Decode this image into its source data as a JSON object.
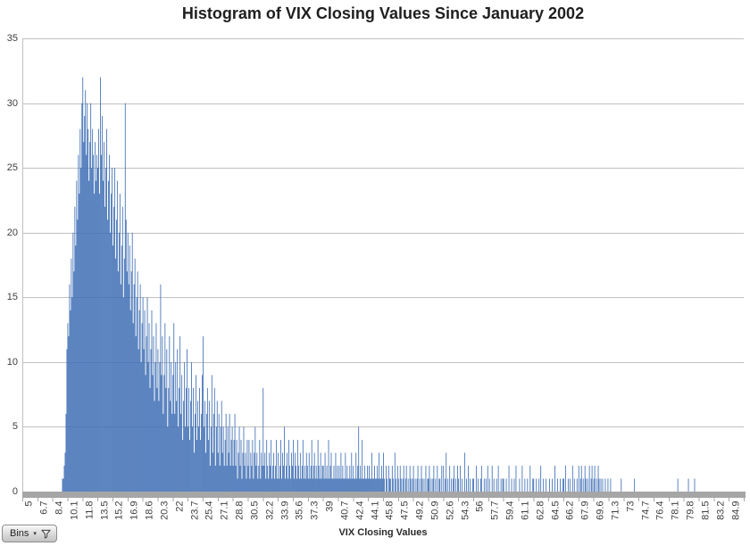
{
  "title": "Histogram of VIX Closing Values Since January 2002",
  "x_axis_title": "VIX Closing Values",
  "field_button": {
    "label": "Bins",
    "dropdown_icon": "▾",
    "filter_icon": "funnel"
  },
  "colors": {
    "bar": "#3f6fb5",
    "gridline": "#c0c0c0",
    "axis_band": "#a6a6a6",
    "text": "#3f3f3f"
  },
  "chart_data": {
    "type": "bar",
    "subtype": "histogram",
    "title": "Histogram of VIX Closing Values Since January 2002",
    "xlabel": "VIX Closing Values",
    "ylabel": "",
    "ylim": [
      0,
      35
    ],
    "y_ticks": [
      0,
      5,
      10,
      15,
      20,
      25,
      30,
      35
    ],
    "grid": true,
    "legend": false,
    "bin_start": 5.0,
    "bin_width": 0.1,
    "bins_per_tick": 17,
    "x_tick_labels": [
      "5",
      "6.7",
      "8.4",
      "10.1",
      "11.8",
      "13.5",
      "15.2",
      "16.9",
      "18.6",
      "20.3",
      "22",
      "23.7",
      "25.4",
      "27.1",
      "28.8",
      "30.5",
      "32.2",
      "33.9",
      "35.6",
      "37.3",
      "39",
      "40.7",
      "42.4",
      "44.1",
      "45.8",
      "47.5",
      "49.2",
      "50.9",
      "52.6",
      "54.3",
      "56",
      "57.7",
      "59.4",
      "61.1",
      "62.8",
      "64.5",
      "66.2",
      "67.9",
      "69.6",
      "71.3",
      "73",
      "74.7",
      "76.4",
      "78.1",
      "79.8",
      "81.5",
      "83.2",
      "84.9"
    ],
    "values": [
      0,
      0,
      0,
      0,
      0,
      0,
      0,
      0,
      0,
      0,
      0,
      0,
      0,
      0,
      0,
      0,
      0,
      0,
      0,
      0,
      0,
      0,
      0,
      0,
      0,
      0,
      0,
      0,
      0,
      0,
      0,
      0,
      0,
      0,
      0,
      0,
      0,
      0,
      0,
      0,
      0,
      0,
      0,
      0,
      0,
      1,
      1,
      2,
      3,
      6,
      11,
      13,
      12,
      16,
      14,
      18,
      15,
      20,
      17,
      22,
      19,
      24,
      21,
      26,
      23,
      28,
      25,
      30,
      32,
      27,
      29,
      31,
      26,
      30,
      28,
      24,
      27,
      30,
      25,
      28,
      26,
      23,
      27,
      24,
      26,
      25,
      28,
      23,
      32,
      26,
      29,
      24,
      27,
      22,
      25,
      28,
      21,
      24,
      26,
      20,
      23,
      25,
      19,
      22,
      25,
      18,
      21,
      24,
      17,
      20,
      23,
      16,
      19,
      22,
      15,
      18,
      30,
      21,
      17,
      20,
      16,
      19,
      14,
      17,
      20,
      13,
      16,
      18,
      12,
      15,
      17,
      11,
      14,
      16,
      10,
      13,
      15,
      11,
      14,
      9,
      12,
      15,
      10,
      13,
      8,
      11,
      14,
      9,
      12,
      7,
      10,
      13,
      8,
      11,
      7,
      10,
      16,
      9,
      12,
      6,
      9,
      13,
      8,
      11,
      5,
      8,
      12,
      7,
      10,
      6,
      9,
      13,
      6,
      10,
      7,
      11,
      5,
      8,
      12,
      6,
      9,
      4,
      7,
      10,
      5,
      8,
      11,
      5,
      8,
      4,
      7,
      10,
      5,
      8,
      3,
      6,
      9,
      4,
      7,
      5,
      8,
      4,
      6,
      9,
      12,
      5,
      7,
      3,
      6,
      8,
      4,
      7,
      2,
      5,
      9,
      3,
      6,
      8,
      2,
      5,
      7,
      3,
      6,
      2,
      5,
      7,
      3,
      5,
      2,
      4,
      6,
      2,
      5,
      3,
      6,
      2,
      4,
      5,
      2,
      4,
      6,
      2,
      4,
      1,
      3,
      5,
      2,
      4,
      1,
      3,
      5,
      2,
      3,
      1,
      4,
      2,
      4,
      1,
      3,
      2,
      4,
      1,
      3,
      5,
      2,
      3,
      1,
      2,
      4,
      1,
      3,
      2,
      8,
      2,
      3,
      1,
      4,
      2,
      1,
      3,
      2,
      4,
      1,
      2,
      3,
      1,
      2,
      4,
      1,
      3,
      1,
      2,
      4,
      1,
      3,
      2,
      5,
      1,
      2,
      3,
      1,
      4,
      2,
      1,
      3,
      2,
      4,
      1,
      3,
      2,
      1,
      4,
      2,
      1,
      3,
      1,
      2,
      4,
      1,
      2,
      1,
      3,
      2,
      1,
      3,
      1,
      2,
      4,
      1,
      2,
      3,
      1,
      2,
      1,
      4,
      2,
      1,
      3,
      1,
      2,
      2,
      1,
      3,
      1,
      2,
      1,
      4,
      1,
      2,
      3,
      1,
      1,
      2,
      1,
      3,
      1,
      2,
      1,
      2,
      1,
      3,
      1,
      2,
      1,
      1,
      3,
      1,
      2,
      1,
      1,
      2,
      1,
      3,
      1,
      2,
      1,
      1,
      3,
      1,
      2,
      5,
      1,
      2,
      1,
      4,
      1,
      1,
      2,
      1,
      1,
      2,
      1,
      2,
      1,
      1,
      3,
      1,
      1,
      2,
      1,
      1,
      2,
      1,
      3,
      1,
      1,
      2,
      1,
      3,
      1,
      0,
      2,
      1,
      0,
      2,
      1,
      1,
      0,
      2,
      1,
      0,
      3,
      1,
      0,
      2,
      1,
      0,
      2,
      1,
      0,
      1,
      2,
      0,
      1,
      2,
      0,
      1,
      0,
      2,
      1,
      0,
      1,
      2,
      0,
      1,
      0,
      1,
      2,
      0,
      1,
      0,
      2,
      1,
      0,
      1,
      0,
      2,
      0,
      1,
      1,
      2,
      0,
      1,
      0,
      1,
      2,
      0,
      1,
      0,
      2,
      0,
      1,
      1,
      0,
      2,
      0,
      2,
      0,
      1,
      3,
      0,
      1,
      0,
      2,
      0,
      1,
      0,
      1,
      2,
      0,
      1,
      0,
      2,
      1,
      0,
      2,
      0,
      1,
      0,
      0,
      3,
      0,
      1,
      0,
      2,
      0,
      1,
      0,
      0,
      1,
      1,
      0,
      0,
      2,
      0,
      1,
      0,
      0,
      1,
      2,
      0,
      0,
      1,
      0,
      1,
      0,
      2,
      0,
      1,
      0,
      0,
      2,
      0,
      1,
      0,
      0,
      1,
      0,
      2,
      0,
      0,
      1,
      0,
      1,
      1,
      0,
      0,
      1,
      0,
      0,
      2,
      0,
      0,
      1,
      0,
      0,
      1,
      0,
      2,
      0,
      0,
      0,
      1,
      0,
      0,
      2,
      0,
      0,
      1,
      0,
      0,
      1,
      0,
      0,
      2,
      0,
      0,
      1,
      1,
      0,
      0,
      1,
      0,
      0,
      1,
      0,
      2,
      0,
      0,
      1,
      0,
      0,
      1,
      0,
      0,
      0,
      1,
      0,
      0,
      1,
      0,
      0,
      2,
      0,
      0,
      1,
      0,
      0,
      1,
      0,
      0,
      1,
      1,
      0,
      2,
      0,
      0,
      1,
      0,
      1,
      0,
      0,
      2,
      0,
      1,
      0,
      0,
      1,
      0,
      2,
      0,
      1,
      2,
      0,
      1,
      0,
      2,
      1,
      0,
      1,
      0,
      2,
      0,
      1,
      2,
      0,
      1,
      2,
      0,
      1,
      0,
      2,
      1,
      0,
      1,
      0,
      1,
      0,
      0,
      1,
      0,
      0,
      1,
      0,
      0,
      1,
      0,
      0,
      0,
      0,
      0,
      0,
      0,
      0,
      0,
      0,
      0,
      1,
      0,
      0,
      0,
      0,
      0,
      0,
      0,
      0,
      0,
      0,
      0,
      0,
      0,
      0,
      1,
      0,
      0,
      0,
      0,
      0,
      0,
      0,
      0,
      0,
      0,
      0,
      0,
      0,
      0,
      0,
      0,
      0,
      0,
      0,
      0,
      0,
      0,
      0,
      0,
      0,
      0,
      0,
      0,
      0,
      0,
      0,
      0,
      0,
      0,
      0,
      0,
      0,
      0,
      0,
      0,
      0,
      0,
      0,
      0,
      0,
      0,
      0,
      0,
      1,
      0,
      0,
      0,
      0,
      0,
      0,
      0,
      0,
      0,
      0,
      0,
      1,
      0,
      0,
      0,
      0,
      0,
      0,
      1,
      0,
      0,
      0,
      0,
      0,
      0,
      0,
      0,
      0,
      0,
      0,
      0,
      0,
      0,
      0,
      0,
      0,
      0,
      0,
      0,
      0,
      0,
      0,
      0,
      0,
      0,
      0,
      0,
      0,
      0,
      0,
      0,
      0,
      0,
      0,
      0,
      0,
      0,
      0,
      0,
      0,
      0,
      0,
      0,
      0,
      0,
      0,
      0,
      0,
      0,
      0,
      0,
      0,
      0,
      0
    ]
  }
}
